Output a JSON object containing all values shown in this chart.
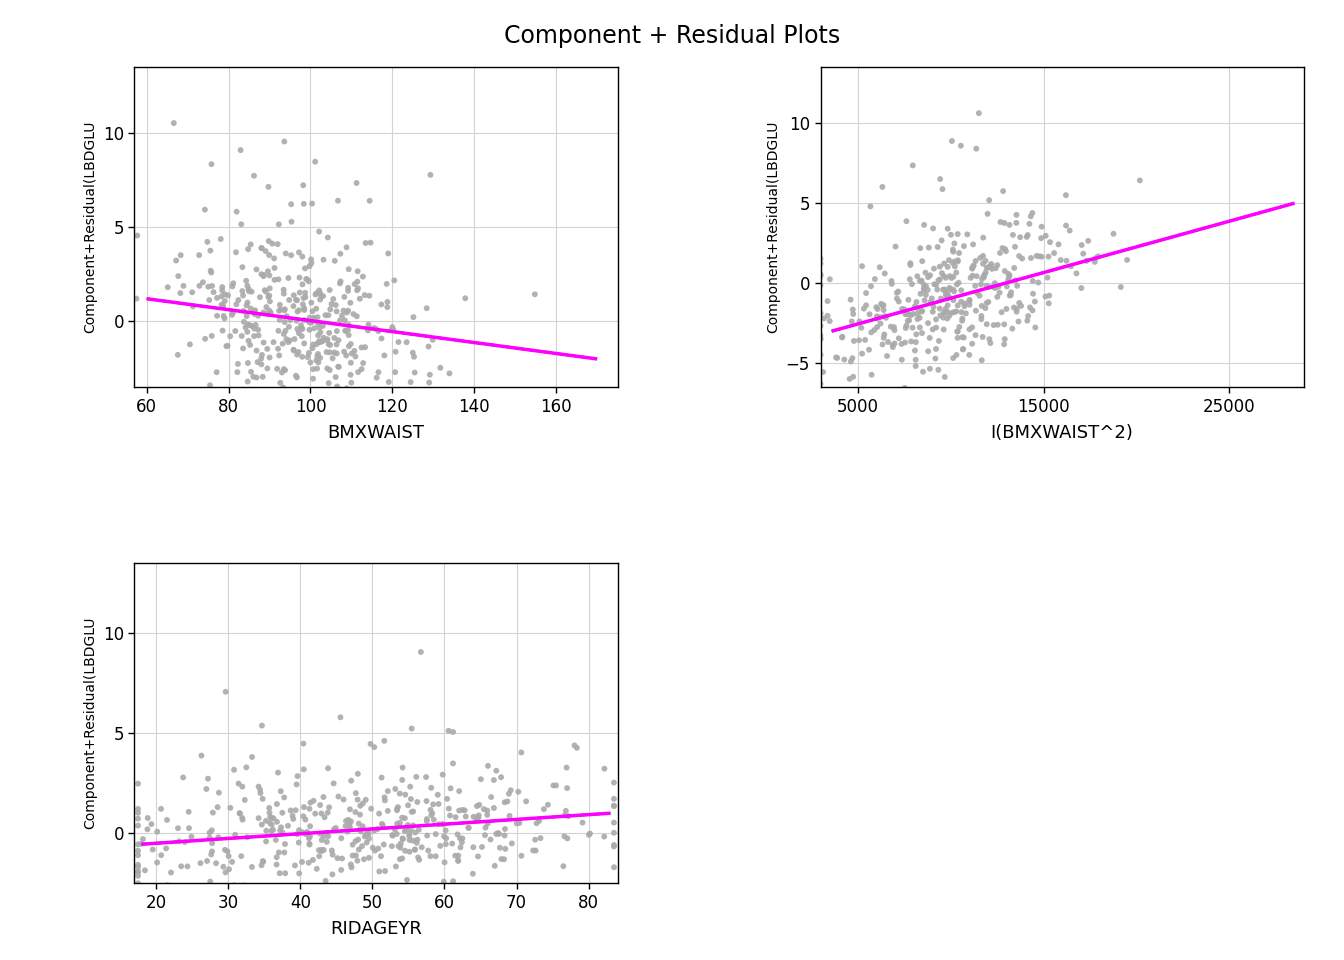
{
  "title": "Component + Residual Plots",
  "title_fontsize": 17,
  "panels": [
    {
      "xlabel": "BMXWAIST",
      "ylabel": "Component+Residual(LBDGLU",
      "xlim": [
        57,
        175
      ],
      "ylim": [
        -3.5,
        13.5
      ],
      "xticks": [
        60,
        80,
        100,
        120,
        140,
        160
      ],
      "yticks": [
        0,
        5,
        10
      ],
      "line_x": [
        60,
        170
      ],
      "line_y": [
        1.2,
        -2.0
      ],
      "scatter_seed": 42,
      "scatter_n": 400,
      "scatter_x_mean": 97,
      "scatter_x_std": 15,
      "scatter_y_mean": 0.0,
      "scatter_y_std": 2.0,
      "scatter_skew": 1.5
    },
    {
      "xlabel": "I(BMXWAIST^2)",
      "ylabel": "Component+Residual(LBDGLU",
      "xlim": [
        3000,
        29000
      ],
      "ylim": [
        -6.5,
        13.5
      ],
      "xticks": [
        5000,
        15000,
        25000
      ],
      "yticks": [
        -5,
        0,
        5,
        10
      ],
      "line_x": [
        3600,
        28500
      ],
      "line_y": [
        -3.0,
        5.0
      ],
      "scatter_seed": 43,
      "scatter_n": 400,
      "scatter_x_mean": 10000,
      "scatter_x_std": 3500,
      "scatter_y_mean": 0.0,
      "scatter_y_std": 2.0,
      "scatter_skew": 1.5
    },
    {
      "xlabel": "RIDAGEYR",
      "ylabel": "Component+Residual(LBDGLU",
      "xlim": [
        17,
        84
      ],
      "ylim": [
        -2.5,
        13.5
      ],
      "xticks": [
        20,
        30,
        40,
        50,
        60,
        70,
        80
      ],
      "yticks": [
        0,
        5,
        10
      ],
      "line_x": [
        18,
        83
      ],
      "line_y": [
        -0.55,
        1.0
      ],
      "scatter_seed": 44,
      "scatter_n": 450,
      "scatter_x_mean": 48,
      "scatter_x_std": 17,
      "scatter_y_mean": 0.0,
      "scatter_y_std": 1.5,
      "scatter_skew": 0.5
    }
  ],
  "point_color": "#aaaaaa",
  "point_size": 18,
  "line_color": "#ff00ff",
  "dashed_color": "#0000cc",
  "grid_color": "#d3d3d3",
  "background_color": "#ffffff",
  "plot_bg_color": "#ffffff"
}
